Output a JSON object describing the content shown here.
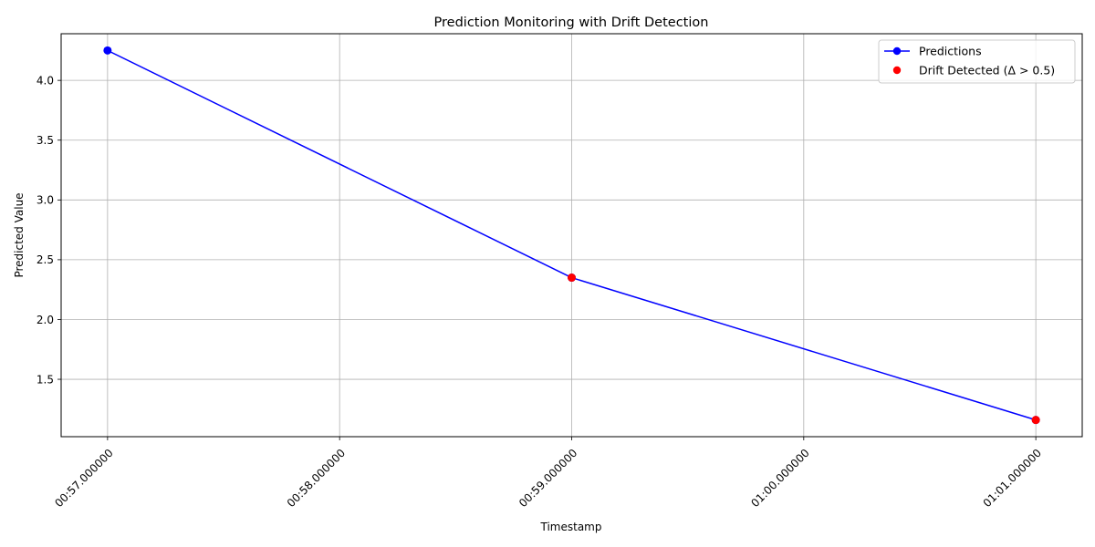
{
  "chart_data": {
    "type": "line",
    "title": "Prediction Monitoring with Drift Detection",
    "xlabel": "Timestamp",
    "ylabel": "Predicted Value",
    "x_ticks": [
      "00:57.000000",
      "00:58.000000",
      "00:59.000000",
      "01:00.000000",
      "01:01.000000"
    ],
    "y_ticks": [
      1.5,
      2.0,
      2.5,
      3.0,
      3.5,
      4.0
    ],
    "y_tick_labels": [
      "1.5",
      "2.0",
      "2.5",
      "3.0",
      "3.5",
      "4.0"
    ],
    "xlim": [
      -0.2,
      4.2
    ],
    "ylim": [
      1.02,
      4.39
    ],
    "grid": true,
    "legend_position": "top-right",
    "series": [
      {
        "name": "Predictions",
        "kind": "line-with-markers",
        "color": "#0000ff",
        "x": [
          "00:57.000000",
          "00:59.000000",
          "01:01.000000"
        ],
        "y": [
          4.25,
          2.35,
          1.16
        ]
      },
      {
        "name": "Drift Detected (Δ > 0.5)",
        "kind": "scatter",
        "color": "#ff0000",
        "x": [
          "00:59.000000",
          "01:01.000000"
        ],
        "y": [
          2.35,
          1.16
        ]
      }
    ]
  }
}
